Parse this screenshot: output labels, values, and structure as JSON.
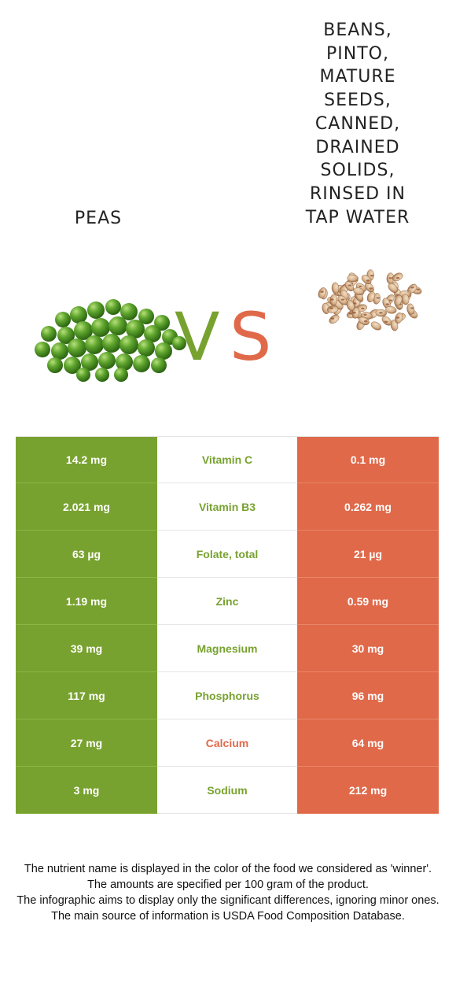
{
  "left_food": {
    "title": "PEAS"
  },
  "right_food": {
    "title": "BEANS, PINTO, MATURE SEEDS, CANNED, DRAINED SOLIDS, RINSED IN TAP WATER"
  },
  "vs": {
    "v": "V",
    "s": "S"
  },
  "colors": {
    "left": "#78a22f",
    "right": "#e0694a"
  },
  "rows": [
    {
      "left": "14.2 mg",
      "nutrient": "Vitamin C",
      "right": "0.1 mg",
      "winner": "left"
    },
    {
      "left": "2.021 mg",
      "nutrient": "Vitamin B3",
      "right": "0.262 mg",
      "winner": "left"
    },
    {
      "left": "63 µg",
      "nutrient": "Folate, total",
      "right": "21 µg",
      "winner": "left"
    },
    {
      "left": "1.19 mg",
      "nutrient": "Zinc",
      "right": "0.59 mg",
      "winner": "left"
    },
    {
      "left": "39 mg",
      "nutrient": "Magnesium",
      "right": "30 mg",
      "winner": "left"
    },
    {
      "left": "117 mg",
      "nutrient": "Phosphorus",
      "right": "96 mg",
      "winner": "left"
    },
    {
      "left": "27 mg",
      "nutrient": "Calcium",
      "right": "64 mg",
      "winner": "right"
    },
    {
      "left": "3 mg",
      "nutrient": "Sodium",
      "right": "212 mg",
      "winner": "left"
    }
  ],
  "footer": {
    "line1": "The nutrient name is displayed in the color of the food we considered as 'winner'.",
    "line2": "The amounts are specified per 100 gram of the product.",
    "line3": "The infographic aims to display only the significant differences, ignoring minor ones.",
    "line4": "The main source of information is USDA Food Composition Database."
  }
}
